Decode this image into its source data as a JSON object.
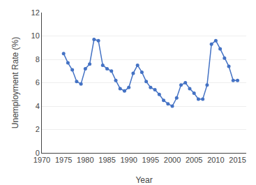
{
  "chart_data": {
    "type": "line",
    "x": [
      1975,
      1976,
      1977,
      1978,
      1979,
      1980,
      1981,
      1982,
      1983,
      1984,
      1985,
      1986,
      1987,
      1988,
      1989,
      1990,
      1991,
      1992,
      1993,
      1994,
      1995,
      1996,
      1997,
      1998,
      1999,
      2000,
      2001,
      2002,
      2003,
      2004,
      2005,
      2006,
      2007,
      2008,
      2009,
      2010,
      2011,
      2012,
      2013,
      2014,
      2015
    ],
    "values": [
      8.5,
      7.7,
      7.1,
      6.1,
      5.9,
      7.2,
      7.6,
      9.7,
      9.6,
      7.5,
      7.2,
      7.0,
      6.2,
      5.5,
      5.3,
      5.6,
      6.8,
      7.5,
      6.9,
      6.1,
      5.6,
      5.4,
      5.0,
      4.5,
      4.2,
      4.0,
      4.7,
      5.8,
      6.0,
      5.5,
      5.1,
      4.6,
      4.6,
      5.8,
      9.3,
      9.6,
      8.9,
      8.1,
      7.4,
      6.2,
      6.2
    ],
    "color": "#4472c4",
    "marker": "circle",
    "xlabel": "Year",
    "ylabel": "Unemployment Rate (%)",
    "xlim": [
      1970,
      2017
    ],
    "ylim": [
      0,
      12
    ],
    "xticks": [
      1970,
      1975,
      1980,
      1985,
      1990,
      1995,
      2000,
      2005,
      2010,
      2015
    ],
    "yticks": [
      0,
      2,
      4,
      6,
      8,
      10,
      12
    ],
    "grid": "y"
  }
}
